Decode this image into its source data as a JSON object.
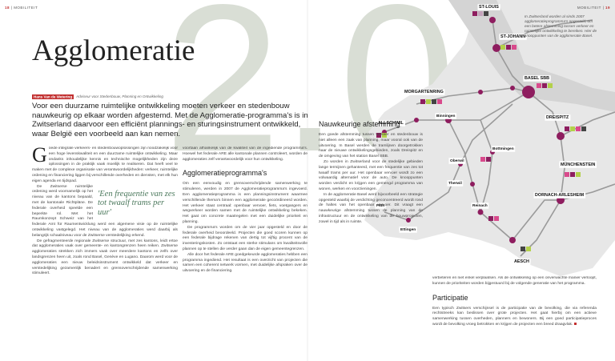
{
  "header": {
    "left_page": "18",
    "left_section": "MOBILITEIT",
    "right_section": "MOBILITEIT",
    "right_page": "19"
  },
  "hero": "2.0",
  "title": "Agglomeratie",
  "byline": {
    "author": "Hans Van de Wetering",
    "role": "Adviseur voor Stedenbouw, Planning en Ontwikkeling"
  },
  "lead": "Voor een duurzame ruimtelijke ontwikkeling moeten verkeer en stedenbouw nauwkeurig op elkaar worden afgestemd. Met de Agglomeratie-programma's is in Zwitserland daarvoor een efficiënt plannings- en sturingsinstrument ontwikkeld, waar België een voorbeeld aan kan nemen.",
  "pull_quote": "'Een frequentie van zes tot twaalf trams per uur'",
  "column1": [
    "Goede integrale verkeers- en stedenbouwoplossingen zijn noodzakelijk voor een hoge levenskwaliteit en een duurzame ruimtelijke ontwikkeling. Maar ondanks inhoudelijke kennis en technische mogelijkheden zijn deze oplossingen in de praktijk vaak moeilijk te realiseren. Dat heeft veel te maken met de complexe organisatie van verantwoordelijkheden: verkeer, ruimtelijke ordening en financiering liggen bij verschillende overheden en diensten, met elk hun eigen agenda en tijdspad.",
    "De Zwitserse ruimtelijke ordening werd voornamelijk op het niveau van de kantons bepaald, met de kantonale Richtpläne. De federale overheid speelde een beperkte rol. Met het Raumkonzept Schweiz van het federale Amt für Raumentwicklung werd een algemene visie op de ruimtelijke ontwikkeling vastgelegd. Het niveau van de agglomeraties werd daarbij als belangrijk schaalniveau voor de Zwitserse verstedelijking erkend.",
    "De gefragmenteerde regionale Zwitserse structuur, met zes kantons, leidt ertoe dat agglomeraties vaak over gemeente- en kantongrenzen heen reiken. Zwitserse agglomeraties strekken zich immers vaak over meerdere kantons en zelfs over landsgrenzen heen uit, zoals rond Basel, Genève en Lugano. Daarom werd voor de agglomeraties een nieuw beleidsinstrument ontwikkeld dat verkeer en verstedelijking gezamenlijk benadert en grensoverschrijdende samenwerking stimuleert."
  ],
  "column2": [
    "voortaan afhankelijk van de kwaliteit van de ingediende programma's. Hoewel het federale ARE alle kantonale plannen controleert, worden de agglomeraties zelf verantwoordelijk voor hun ontwikkeling."
  ],
  "section1": {
    "heading": "Agglomeratieprogramma's",
    "paragraphs": [
      "Om een eenvoudig en grensoverschrijdende samenwerking te stimuleren, werden in 2007 de Agglomeratieprogramma's ingevoerd. Een agglomeratieprogramma is een planningsinstrument waarmee verschillende thema's binnen een agglomeratie gecoördineerd worden. Het verkeer staat centraal: openbaar vervoer, fiets, voetgangers en wegverkeer worden samen met de ruimtelijke ontwikkeling bekeken. Het gaat om concrete maatregelen met een duidelijke prioriteit en planning.",
      "De programma's worden om de vier jaar opgesteld en door de federale overheid beoordeeld. Projecten die goed scoren kunnen op een federale bijdrage rekenen van dertig tot vijftig procent van de investeringskosten. Zo ontstaat een sterke stimulans om kwaliteitsvolle plannen op te stellen die verder gaan dan de eigen gemeentegrenzen.",
      "Alle door het federale ARE goedgekeurde agglomeraties hebben een programma ingediend. Het resultaat is een overzicht van projecten die samen een coherent netwerk vormen, met duidelijke afspraken over de uitvoering en de financiering."
    ]
  },
  "section2": {
    "heading": "Nauwkeurige afstemming",
    "paragraphs": [
      "Een goede afstemming tussen verkeer en stedenbouw is niet alleen een zaak van planning, maar vooral ook van de uitvoering. In Basel werden de tramlijnen doorgetrokken naar de nieuwe ontwikkelingsgebieden, zoals Dreispitz en de omgeving van het station Basel SBB.",
      "Zo worden in Zwitserland voor de stedelijke gebieden lange termijnen gehanteerd, met een frequentie van zes tot twaalf trams per uur. Het openbaar vervoer wordt zo een volwaardig alternatief voor de auto. De knooppunten worden verdicht en krijgen een gemengd programma van wonen, werken en voorzieningen.",
      "In de agglomeratie Basel werd bijvoorbeeld een strategie opgesteld waarbij de verdichting geconcentreerd wordt rond de haltes van het openbaar vervoer. Dit vraagt een nauwkeurige afstemming tussen de planning van de infrastructuur en de ontwikkeling van de bouwprojecten, zowel in tijd als in ruimte."
    ]
  },
  "column4": [
    "verbeteren en niet enkel verplaatsen. Als de ontwikkeling op een onverwachte manier verloopt, kunnen de prioriteiten worden bijgestuurd bij de volgende generatie van het programma."
  ],
  "section3": {
    "heading": "Participatie",
    "paragraphs": [
      "Een typisch Zwitsers verschijnsel is de participatie van de bevolking, die via referenda rechtstreeks kan beslissen over grote projecten. Het gaat hierbij om een actieve samenwerking tussen overheden, planners en bewoners. Bij een goed participatieproces wordt de bevolking vroeg betrokken en krijgen de projecten een breed draagvlak."
    ]
  },
  "map": {
    "caption": "In Zwitserland worden al sinds 2007 agglomeratieprogramma's opgesteld, om een betere afstemming tussen verkeer en ruimtelijke ontwikkeling te bereiken. Hier de knooppunten van de agglomeratie Basel.",
    "labels": [
      "ST-LOUIS",
      "ST-JOHANN",
      "MORGARTENRING",
      "BASEL SBB",
      "ALLSCHWIL",
      "Binningen",
      "DREISPITZ",
      "Oberwil",
      "Bottmingen",
      "Therwil",
      "MÜNCHENSTEIN",
      "Flüh",
      "Ettingen",
      "Reinach",
      "DORNACH-ARLESHEIM",
      "AESCH"
    ]
  }
}
